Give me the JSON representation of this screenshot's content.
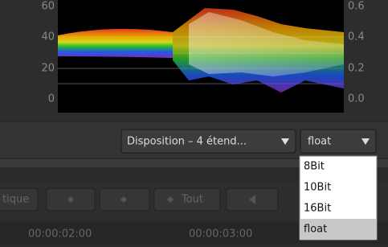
{
  "scope": {
    "left_labels": [
      "60",
      "40",
      "20",
      "0"
    ],
    "right_labels": [
      "0.6",
      "0.4",
      "0.2",
      "0.0"
    ]
  },
  "layout_dropdown": {
    "value": "Disposition – 4 étend..."
  },
  "format_dropdown": {
    "value": "float",
    "options": [
      "8Bit",
      "10Bit",
      "16Bit",
      "float"
    ],
    "selected": 3
  },
  "toolbar": {
    "buttons": [
      "tique",
      "Tout"
    ]
  },
  "timeline": {
    "timecodes": [
      "00:00:02:00",
      "00:00:03:00"
    ]
  }
}
